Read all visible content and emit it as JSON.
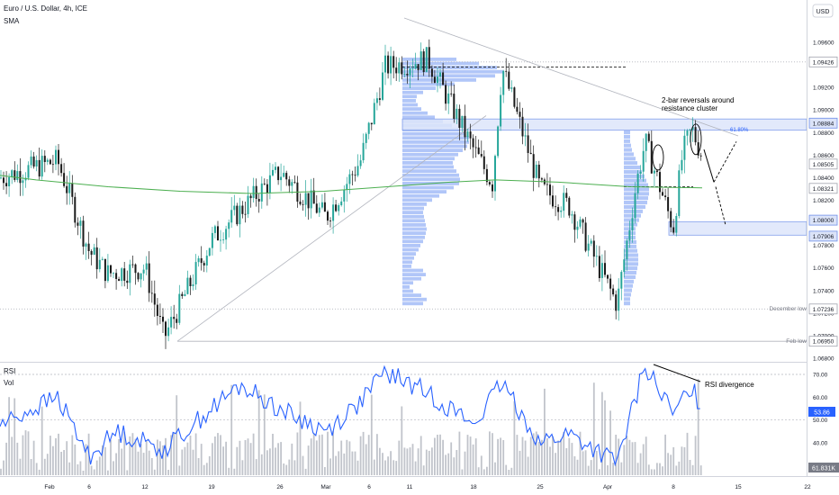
{
  "header": {
    "title": "Euro / U.S. Dollar, 4h, ICE",
    "indicator": "SMA",
    "currency": "USD"
  },
  "colors": {
    "up": "#26a69a",
    "down": "#1a1a1a",
    "sma": "#4caf50",
    "rsi": "#2962ff",
    "volume": "#b2b5be",
    "volume_profile": "#90aef5",
    "highlight_box": "#dde6fb",
    "annotation": "#000000"
  },
  "chart_data": [
    {
      "type": "candlestick",
      "title": "Euro / U.S. Dollar, 4h, ICE",
      "ylim": [
        1.068,
        1.098
      ],
      "y_ticks": [
        1.068,
        1.07,
        1.072,
        1.074,
        1.076,
        1.078,
        1.08,
        1.082,
        1.084,
        1.086,
        1.088,
        1.09,
        1.092,
        1.094,
        1.096
      ],
      "x_ticks": [
        "Feb",
        "6",
        "12",
        "19",
        "26",
        "Mar",
        "6",
        "11",
        "18",
        "25",
        "Apr",
        "8",
        "15",
        "22"
      ],
      "sma_label": "SMA",
      "key_points": [
        {
          "x": "Jan 31",
          "close": 1.084
        },
        {
          "x": "Feb 2",
          "close": 1.0855
        },
        {
          "x": "Feb 6",
          "close": 1.0775
        },
        {
          "x": "Feb 8",
          "close": 1.0755
        },
        {
          "x": "Feb 12",
          "close": 1.076
        },
        {
          "x": "Feb 14",
          "close": 1.0698
        },
        {
          "x": "Feb 19",
          "close": 1.0785
        },
        {
          "x": "Feb 23",
          "close": 1.082
        },
        {
          "x": "Feb 26",
          "close": 1.0845
        },
        {
          "x": "Mar 1",
          "close": 1.0805
        },
        {
          "x": "Mar 5",
          "close": 1.0855
        },
        {
          "x": "Mar 8",
          "close": 1.0938
        },
        {
          "x": "Mar 13",
          "close": 1.0945
        },
        {
          "x": "Mar 18",
          "close": 1.0865
        },
        {
          "x": "Mar 20",
          "close": 1.0835
        },
        {
          "x": "Mar 21",
          "close": 1.0938
        },
        {
          "x": "Mar 25",
          "close": 1.083
        },
        {
          "x": "Mar 28",
          "close": 1.0815
        },
        {
          "x": "Apr 2",
          "close": 1.0728
        },
        {
          "x": "Apr 4",
          "close": 1.0832
        },
        {
          "x": "Apr 5",
          "close": 1.0872
        },
        {
          "x": "Apr 8",
          "close": 1.0795
        },
        {
          "x": "Apr 9",
          "close": 1.0862
        },
        {
          "x": "Apr 10",
          "close": 1.0883
        },
        {
          "x": "Apr 11",
          "close": 1.0862
        }
      ],
      "price_labels": [
        {
          "value": "1.09426",
          "style": "outline"
        },
        {
          "value": "1.08884",
          "style": "box"
        },
        {
          "value": "1.08505",
          "style": "outline"
        },
        {
          "value": "1.08321",
          "style": "outline"
        },
        {
          "value": "1.08000",
          "style": "box"
        },
        {
          "value": "1.07906",
          "style": "box"
        },
        {
          "value": "1.07236",
          "style": "outline"
        },
        {
          "value": "1.06950",
          "style": "outline"
        }
      ],
      "levels": [
        {
          "name": "December low",
          "value": 1.07236
        },
        {
          "name": "Feb low",
          "value": 1.0695
        }
      ],
      "zones": [
        {
          "from": 1.0882,
          "to": 1.0892,
          "label": "61.80%"
        },
        {
          "from": 1.0789,
          "to": 1.0801
        }
      ],
      "annotations": [
        "2-bar reversals around",
        "resistance cluster"
      ]
    },
    {
      "type": "line",
      "title": "RSI",
      "series_label": "Vol",
      "ylim": [
        30,
        78
      ],
      "y_ticks": [
        40,
        50,
        60,
        70
      ],
      "current_rsi": "53.86",
      "current_volume": "61.831K",
      "annotation": "RSI divergence",
      "key_points": [
        {
          "x": "Jan 31",
          "rsi": 48
        },
        {
          "x": "Feb 2",
          "rsi": 60
        },
        {
          "x": "Feb 6",
          "rsi": 34
        },
        {
          "x": "Feb 9",
          "rsi": 45
        },
        {
          "x": "Feb 14",
          "rsi": 37
        },
        {
          "x": "Feb 19",
          "rsi": 55
        },
        {
          "x": "Feb 22",
          "rsi": 65
        },
        {
          "x": "Feb 27",
          "rsi": 52
        },
        {
          "x": "Mar 1",
          "rsi": 45
        },
        {
          "x": "Mar 5",
          "rsi": 58
        },
        {
          "x": "Mar 8",
          "rsi": 71
        },
        {
          "x": "Mar 13",
          "rsi": 62
        },
        {
          "x": "Mar 18",
          "rsi": 48
        },
        {
          "x": "Mar 21",
          "rsi": 66
        },
        {
          "x": "Mar 25",
          "rsi": 40
        },
        {
          "x": "Mar 28",
          "rsi": 44
        },
        {
          "x": "Apr 2",
          "rsi": 31
        },
        {
          "x": "Apr 5",
          "rsi": 74
        },
        {
          "x": "Apr 8",
          "rsi": 52
        },
        {
          "x": "Apr 10",
          "rsi": 65
        },
        {
          "x": "Apr 11",
          "rsi": 53.86
        }
      ]
    }
  ]
}
